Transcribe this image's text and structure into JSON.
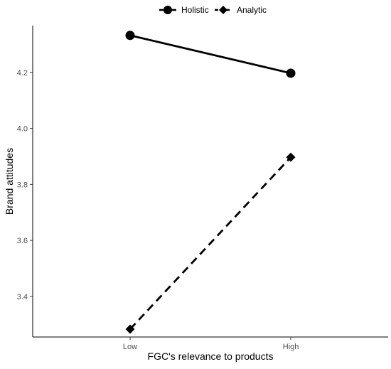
{
  "chart_data": {
    "type": "line",
    "categories": [
      "Low",
      "High"
    ],
    "xlabel": "FGC's relevance to products",
    "ylabel": "Brand attitudes",
    "ylim": [
      3.255,
      4.367
    ],
    "yticks": [
      3.4,
      3.6,
      3.8,
      4.0,
      4.2
    ],
    "ytick_labels": [
      "3.4",
      "3.6",
      "3.8",
      "4.0",
      "4.2"
    ],
    "grid": false,
    "legend_position": "top",
    "series": [
      {
        "name": "Holistic",
        "values": [
          4.332,
          4.197
        ],
        "line_style": "solid",
        "marker": "circle",
        "color": "#000000"
      },
      {
        "name": "Analytic",
        "values": [
          3.283,
          3.897
        ],
        "line_style": "dashed",
        "marker": "diamond",
        "color": "#000000"
      }
    ]
  }
}
